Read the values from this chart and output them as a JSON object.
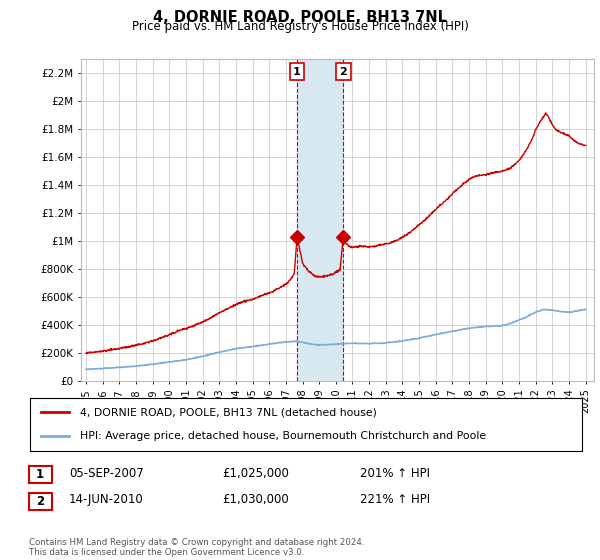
{
  "title": "4, DORNIE ROAD, POOLE, BH13 7NL",
  "subtitle": "Price paid vs. HM Land Registry's House Price Index (HPI)",
  "ylim": [
    0,
    2300000
  ],
  "yticks": [
    0,
    200000,
    400000,
    600000,
    800000,
    1000000,
    1200000,
    1400000,
    1600000,
    1800000,
    2000000,
    2200000
  ],
  "ytick_labels": [
    "£0",
    "£200K",
    "£400K",
    "£600K",
    "£800K",
    "£1M",
    "£1.2M",
    "£1.4M",
    "£1.6M",
    "£1.8M",
    "£2M",
    "£2.2M"
  ],
  "xlim_start": 1994.7,
  "xlim_end": 2025.5,
  "xtick_years": [
    1995,
    1996,
    1997,
    1998,
    1999,
    2000,
    2001,
    2002,
    2003,
    2004,
    2005,
    2006,
    2007,
    2008,
    2009,
    2010,
    2011,
    2012,
    2013,
    2014,
    2015,
    2016,
    2017,
    2018,
    2019,
    2020,
    2021,
    2022,
    2023,
    2024,
    2025
  ],
  "sale1_x": 2007.67,
  "sale1_y": 1025000,
  "sale2_x": 2010.45,
  "sale2_y": 1030000,
  "shade_x1": 2007.67,
  "shade_x2": 2010.45,
  "property_line_color": "#cc0000",
  "hpi_line_color": "#7aabdb",
  "shade_color": "#d8e8f0",
  "grid_color": "#cccccc",
  "background_color": "#ffffff",
  "legend_property": "4, DORNIE ROAD, POOLE, BH13 7NL (detached house)",
  "legend_hpi": "HPI: Average price, detached house, Bournemouth Christchurch and Poole",
  "annotation1_date": "05-SEP-2007",
  "annotation1_price": "£1,025,000",
  "annotation1_hpi": "201% ↑ HPI",
  "annotation2_date": "14-JUN-2010",
  "annotation2_price": "£1,030,000",
  "annotation2_hpi": "221% ↑ HPI",
  "footnote": "Contains HM Land Registry data © Crown copyright and database right 2024.\nThis data is licensed under the Open Government Licence v3.0."
}
